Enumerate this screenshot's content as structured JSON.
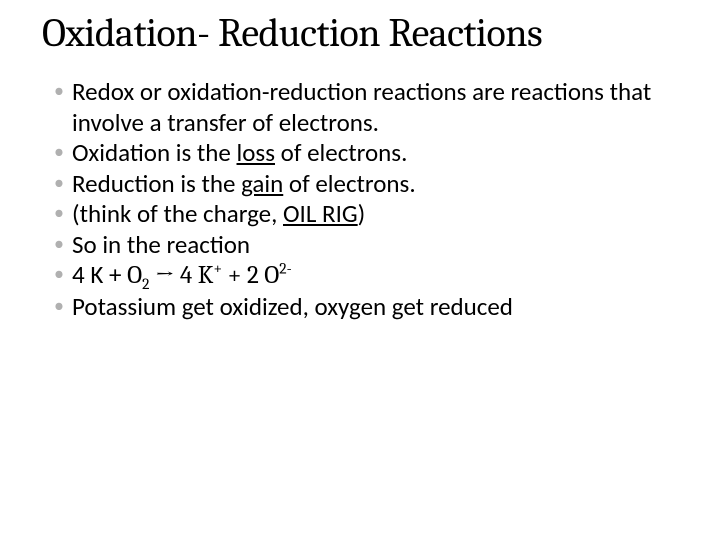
{
  "title": "Oxidation- Reduction Reactions",
  "title_fontsize": 40,
  "title_font": "Cambria",
  "bullet_fontsize": 25,
  "bullet_marker_color": "#b0b0b0",
  "text_color": "#000000",
  "background_color": "#ffffff",
  "bullets": [
    {
      "text_full": "Redox or oxidation-reduction reactions are reactions that involve a transfer of electrons.",
      "pre": "Redox or oxidation-reduction reactions are reactions that involve a transfer of electrons."
    },
    {
      "text_full": "Oxidation is the loss of electrons.",
      "pre": "Oxidation is the ",
      "underlined": "loss",
      "post": " of electrons."
    },
    {
      "text_full": "Reduction is the gain of electrons.",
      "pre": "Reduction is the ",
      "underlined": "gain",
      "post": " of electrons."
    },
    {
      "text_full": "(think of the charge, OIL RIG)",
      "pre": "(think of the charge, ",
      "underlined": "OIL RIG",
      "post": ")"
    },
    {
      "text_full": "So in the reaction",
      "pre": "So in the reaction"
    },
    {
      "text_full": "4 K + O2 → 4 K+  +  2 O2-",
      "equation": {
        "lhs": "4 K + ",
        "o_sym": "O",
        "o_sub": "2",
        "arrow": " → ",
        "rhs1": "4 K",
        "sup1": "+",
        "plus2": "   +   2 ",
        "o_sym2": "O",
        "sup2": "2-"
      }
    },
    {
      "text_full": "Potassium get oxidized, oxygen get reduced",
      "pre": "Potassium get oxidized, oxygen get reduced"
    }
  ]
}
